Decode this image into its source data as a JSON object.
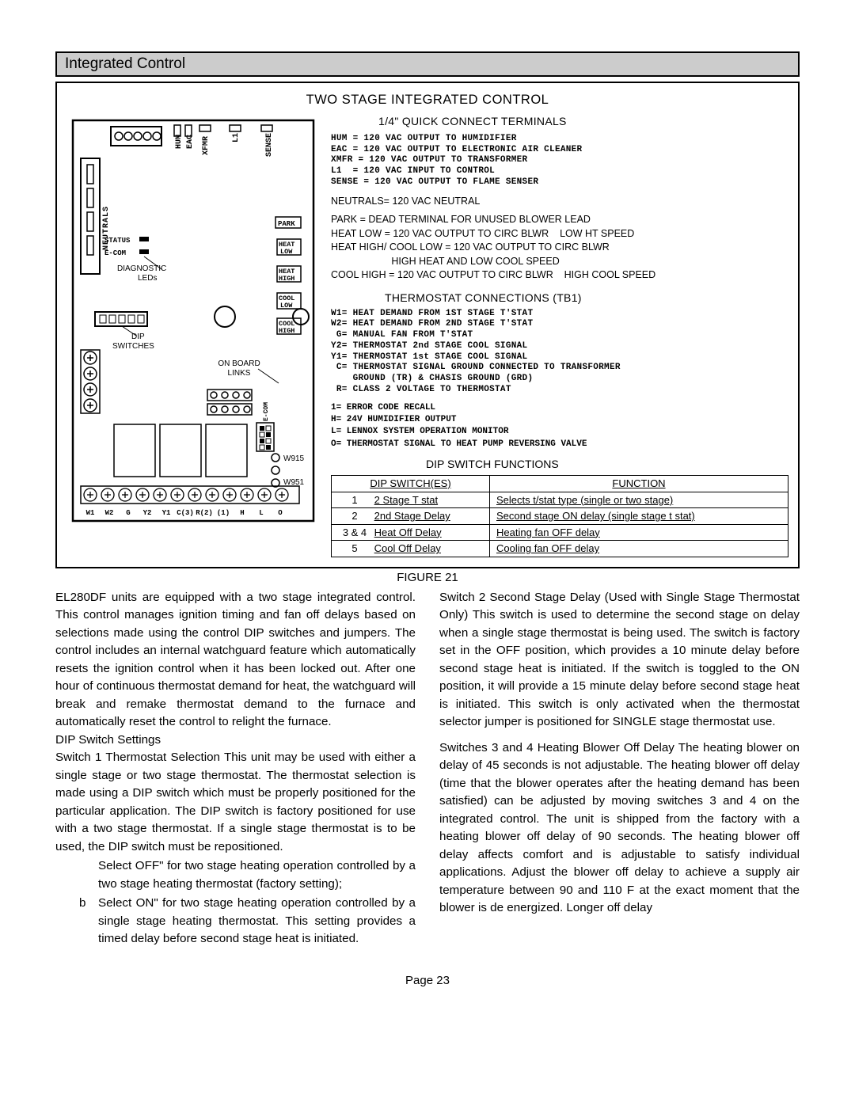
{
  "section_header": "Integrated Control",
  "figure": {
    "title": "TWO STAGE INTEGRATED CONTROL",
    "caption": "FIGURE 21",
    "quick_connect_hdr": "1/4\" QUICK CONNECT TERMINALS",
    "quick_connect_lines": "HUM = 120 VAC OUTPUT TO HUMIDIFIER\nEAC = 120 VAC OUTPUT TO ELECTRONIC AIR CLEANER\nXMFR = 120 VAC OUTPUT TO TRANSFORMER\nL1  = 120 VAC INPUT TO CONTROL\nSENSE = 120 VAC OUTPUT TO FLAME SENSER",
    "neutrals_line": "NEUTRALS= 120 VAC NEUTRAL",
    "park_lines": "PARK = DEAD TERMINAL FOR UNUSED BLOWER LEAD\nHEAT LOW = 120 VAC OUTPUT TO CIRC BLWR    LOW HT SPEED\nHEAT HIGH/ COOL LOW = 120 VAC OUTPUT TO CIRC BLWR\n                      HIGH HEAT AND LOW COOL SPEED\nCOOL HIGH = 120 VAC OUTPUT TO CIRC BLWR    HIGH COOL SPEED",
    "thermo_hdr": "THERMOSTAT CONNECTIONS (TB1)",
    "thermo_lines": "W1= HEAT DEMAND FROM 1ST STAGE T'STAT\nW2= HEAT DEMAND FROM 2ND STAGE T'STAT\n G= MANUAL FAN FROM T'STAT\nY2= THERMOSTAT 2nd STAGE COOL SIGNAL\nY1= THERMOSTAT 1st STAGE COOL SIGNAL\n C= THERMOSTAT SIGNAL GROUND CONNECTED TO TRANSFORMER\n    GROUND (TR) & CHASIS GROUND (GRD)\n R= CLASS 2 VOLTAGE TO THERMOSTAT",
    "extra_lines": "1= ERROR CODE RECALL\nH= 24V HUMIDIFIER OUTPUT\nL= LENNOX SYSTEM OPERATION MONITOR\nO= THERMOSTAT SIGNAL TO HEAT PUMP REVERSING VALVE",
    "dip_hdr": "DIP SWITCH FUNCTIONS",
    "dip_table": {
      "columns": [
        "DIP SWITCH(ES)",
        "FUNCTION"
      ],
      "rows": [
        [
          "1",
          "2 Stage T stat",
          "Selects t/stat type (single or two stage)"
        ],
        [
          "2",
          "2nd Stage Delay",
          "Second stage ON delay (single stage t stat)"
        ],
        [
          "3 & 4",
          "Heat Off Delay",
          "Heating fan OFF delay"
        ],
        [
          "5",
          "Cool Off Delay",
          "Cooling fan OFF delay"
        ]
      ]
    },
    "diagram_labels": {
      "neutrals": "NEUTRALS",
      "hum": "HUM",
      "eac": "EAC",
      "xfmr": "XFMR",
      "l1": "L1",
      "sense": "SENSE",
      "park": "PARK",
      "heat_low": "HEAT\nLOW",
      "heat_high": "HEAT\nHIGH",
      "cool_low": "COOL\nLOW",
      "cool_high": "COOL\nHIGH",
      "status": "STATUS",
      "ecom": "E-COM",
      "diag": "DIAGNOSTIC\nLEDs",
      "dip": "DIP\nSWITCHES",
      "on_board": "ON BOARD\nLINKS",
      "w915": "W915",
      "w951": "W951",
      "ecom_side": "E-COM",
      "bottom_row": [
        "W1",
        "W2",
        "G",
        "Y2",
        "Y1",
        "C(3)",
        "R(2)",
        "(1)",
        "H",
        "L",
        "O"
      ]
    }
  },
  "body": {
    "p1": "EL280DF units are equipped with a two stage integrated control. This control manages ignition timing and  fan off delays based on selections made using the control DIP switches and jumpers. The control includes an internal watchguard feature which automatically resets the ignition control when it has been locked out.  After one hour of continuous thermostat demand for heat, the watchguard will break and remake thermostat demand to the furnace and automatically reset the control to relight the furnace.",
    "dip_settings_hdr": "DIP Switch Settings",
    "p2": "Switch 1    Thermostat Selection    This unit may be used with either a single stage or two stage thermostat. The thermostat selection is made using a DIP switch which must be properly positioned for the particular application. The DIP switch is factory positioned for use with a two stage thermostat. If a single stage thermostat is to be used, the DIP switch must be repositioned.",
    "li_a": "Select  OFF\" for two stage heating operation controlled by a two stage heating thermostat (factory setting);",
    "li_b_marker": "b",
    "li_b": "Select  ON\" for two stage heating operation controlled by a single stage heating thermostat. This setting provides a timed delay before second stage heat is initiated.",
    "p3": "Switch 2    Second Stage Delay (Used with Single Stage Thermostat Only)    This switch is used to determine the second stage on delay when a single stage thermostat is being used. The switch is factory set in the OFF position, which provides a 10 minute delay before second stage heat is initiated. If the switch is toggled to the ON position, it will provide a 15 minute delay before second stage heat is initiated. This switch is only activated when the thermostat selector jumper is positioned for SINGLE stage thermostat use.",
    "p4": "Switches 3 and 4    Heating Blower Off Delay    The heating blower on delay of 45 seconds is not adjustable. The heating blower off delay (time that the blower operates after the heating demand has been satisfied) can be adjusted by moving switches 3 and 4 on the integrated control. The unit is shipped from the factory with a heating blower off delay of 90 seconds. The heating blower off delay affects comfort and is adjustable to satisfy individual applications. Adjust the blower off delay to achieve a supply air temperature between 90  and 110 F at the exact moment that the blower is de energized. Longer off delay"
  },
  "page_number": "Page 23"
}
